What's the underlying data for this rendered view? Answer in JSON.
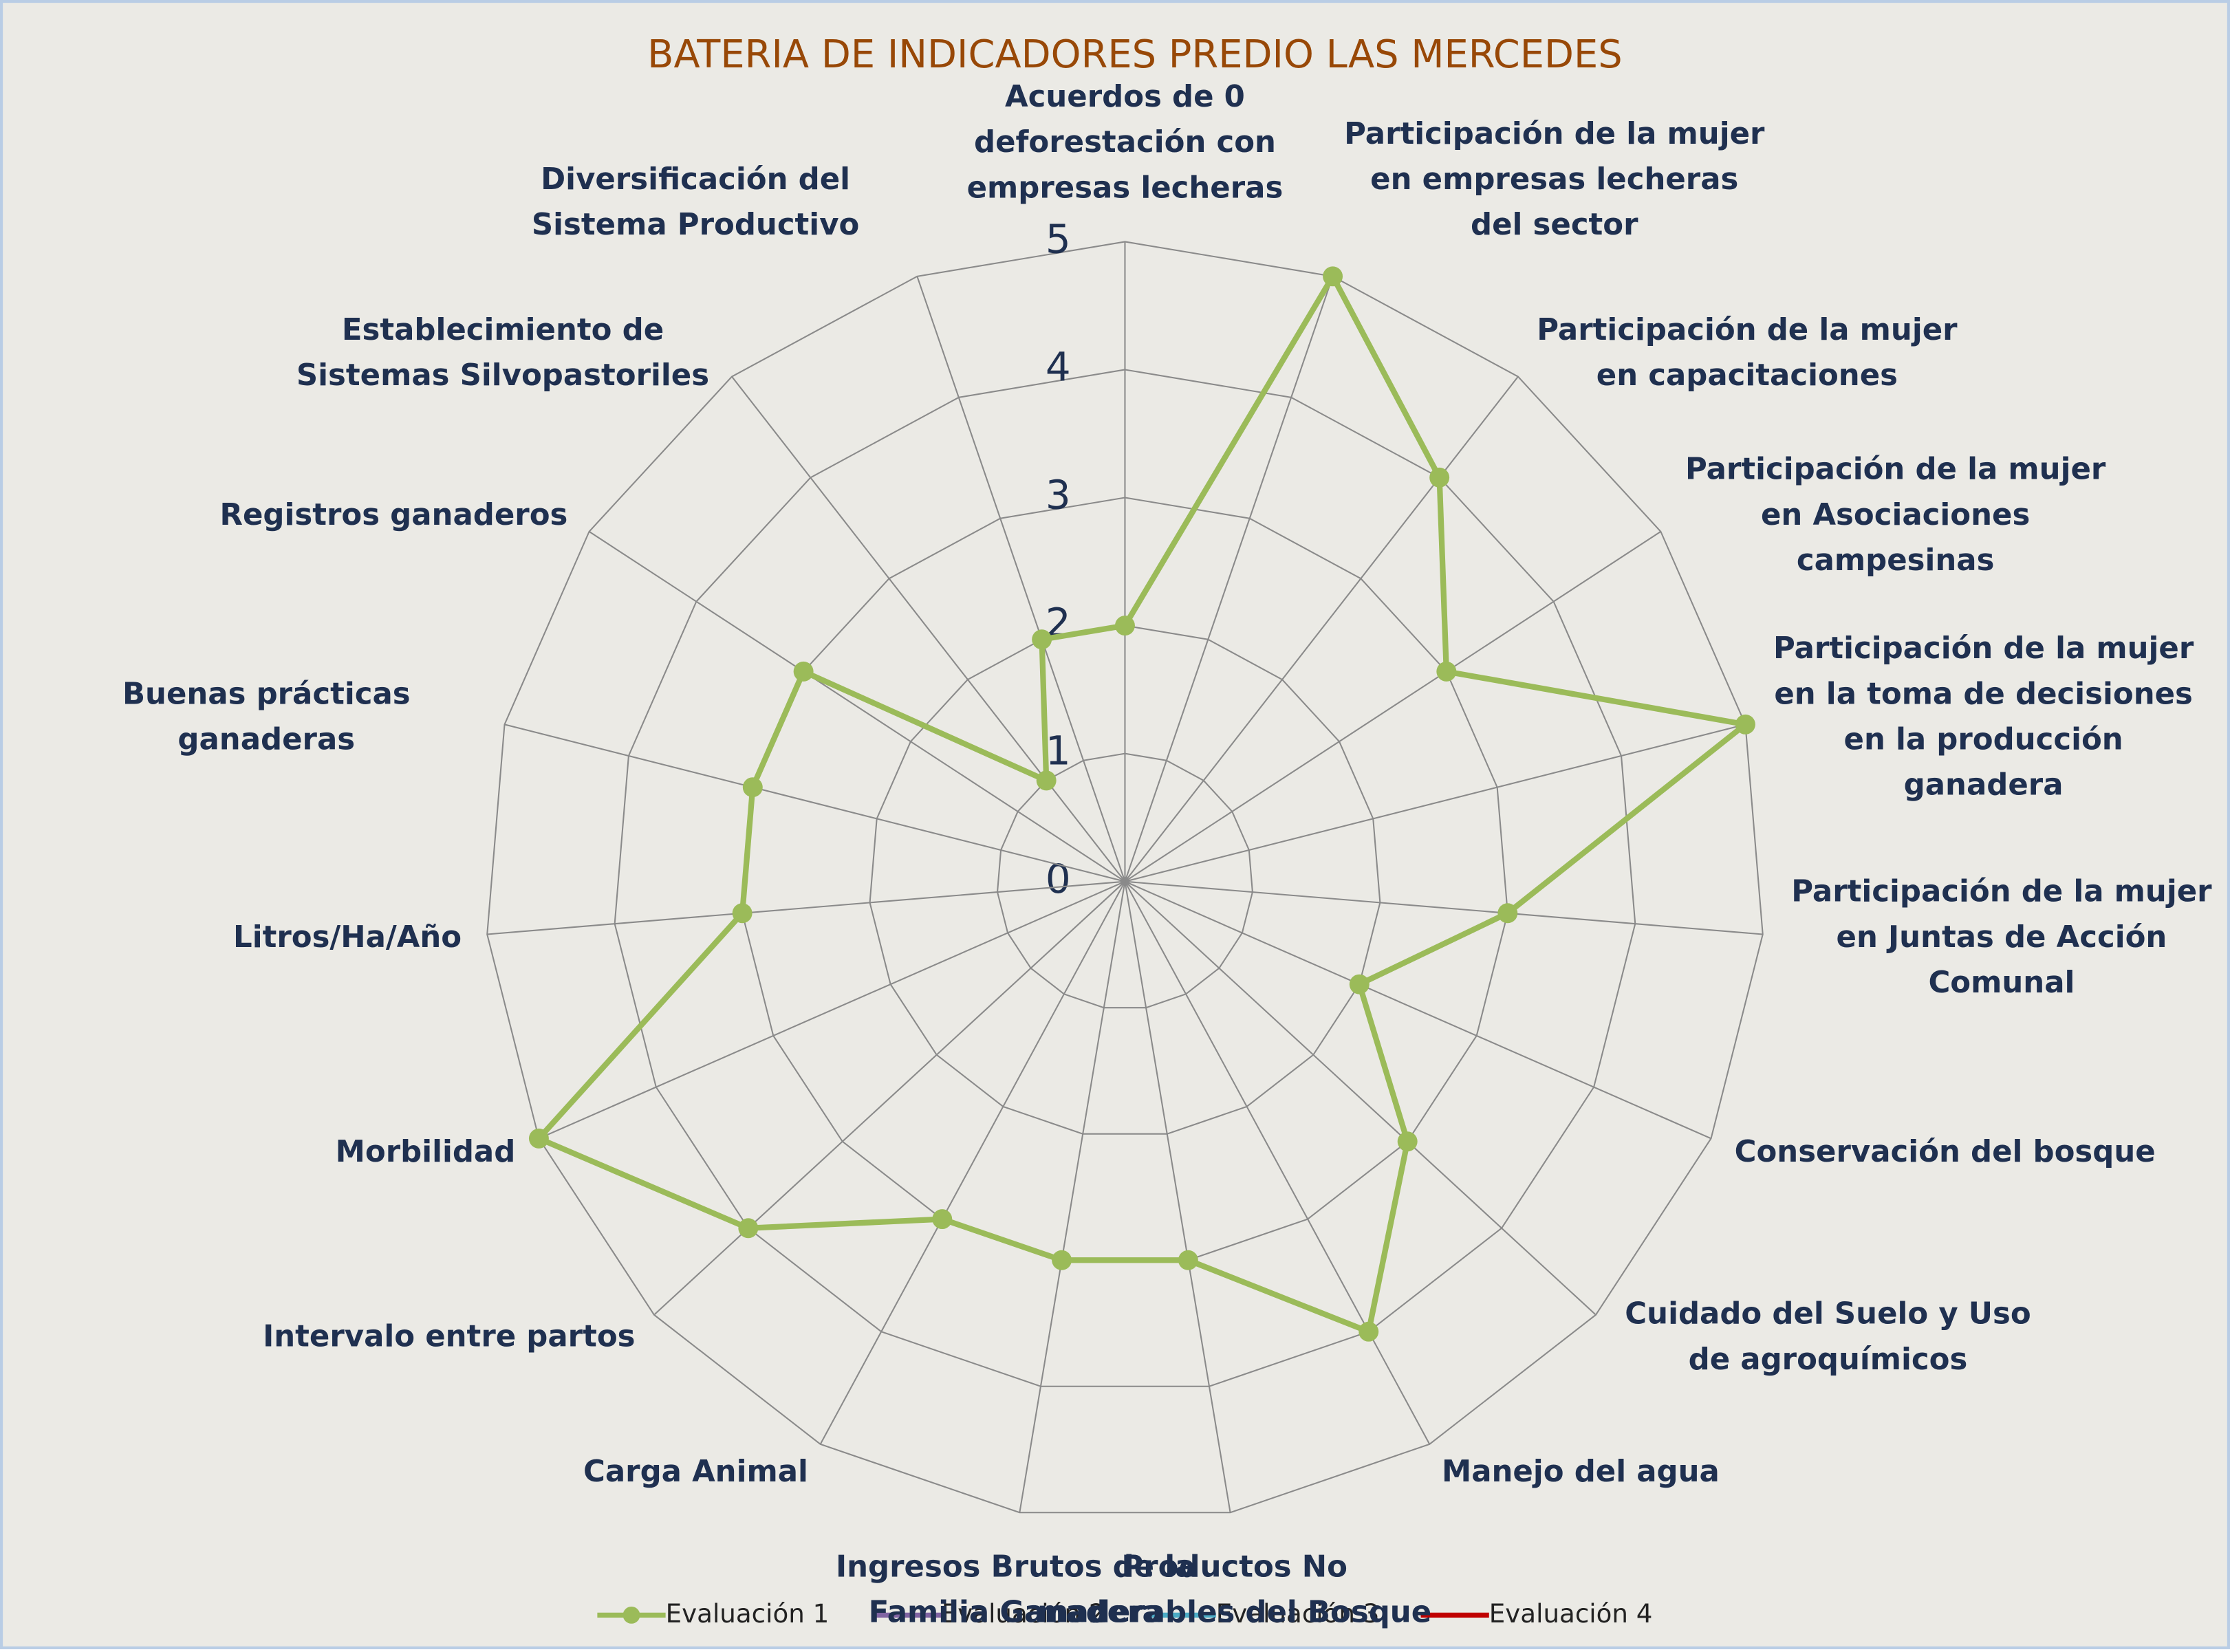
{
  "chart_data": {
    "type": "radar",
    "title": "BATERIA DE INDICADORES PREDIO LAS MERCEDES",
    "categories": [
      "Acuerdos de 0 deforestación con empresas lecheras",
      "Participación de la mujer en empresas lecheras del sector",
      "Participación de la mujer en capacitaciones",
      "Participación de la mujer en Asociaciones campesinas",
      "Participación de la mujer en la toma de decisiones en la producción ganadera",
      "Participación de la mujer en Juntas de Acción Comunal",
      "Conservación del bosque",
      "Cuidado del Suelo y Uso de agroquímicos",
      "Manejo del agua",
      "Productos No maderables del Bosque",
      "Ingresos Brutos de la Familia Ganadera",
      "Carga Animal",
      "Intervalo entre partos",
      "Morbilidad",
      "Litros/Ha/Año",
      "Buenas prácticas ganaderas",
      "Registros ganaderos",
      "Establecimiento de Sistemas Silvopastoriles",
      "Diversificación del Sistema Productivo"
    ],
    "series": [
      {
        "name": "Evaluación 1",
        "color": "#9bbb59",
        "values": [
          2,
          5,
          4,
          3,
          5,
          3,
          2,
          3,
          4,
          3,
          3,
          3,
          4,
          5,
          3,
          3,
          3,
          1,
          2
        ]
      },
      {
        "name": "Evaluación 2",
        "color": "#8064a2",
        "values": [
          null,
          null,
          null,
          null,
          null,
          null,
          null,
          null,
          null,
          null,
          null,
          null,
          null,
          null,
          null,
          null,
          null,
          null,
          null
        ]
      },
      {
        "name": "Evaluación 3",
        "color": "#4bacc6",
        "values": [
          null,
          null,
          null,
          null,
          null,
          null,
          null,
          null,
          null,
          null,
          null,
          null,
          null,
          null,
          null,
          null,
          null,
          null,
          null
        ]
      },
      {
        "name": "Evaluación 4",
        "color": "#c00000",
        "values": [
          null,
          null,
          null,
          null,
          null,
          null,
          null,
          null,
          null,
          null,
          null,
          null,
          null,
          null,
          null,
          null,
          null,
          null,
          null
        ]
      }
    ],
    "ylim": [
      0,
      5
    ],
    "yticks": [
      0,
      1,
      2,
      3,
      4,
      5
    ],
    "grid": true,
    "legend": "bottom"
  }
}
